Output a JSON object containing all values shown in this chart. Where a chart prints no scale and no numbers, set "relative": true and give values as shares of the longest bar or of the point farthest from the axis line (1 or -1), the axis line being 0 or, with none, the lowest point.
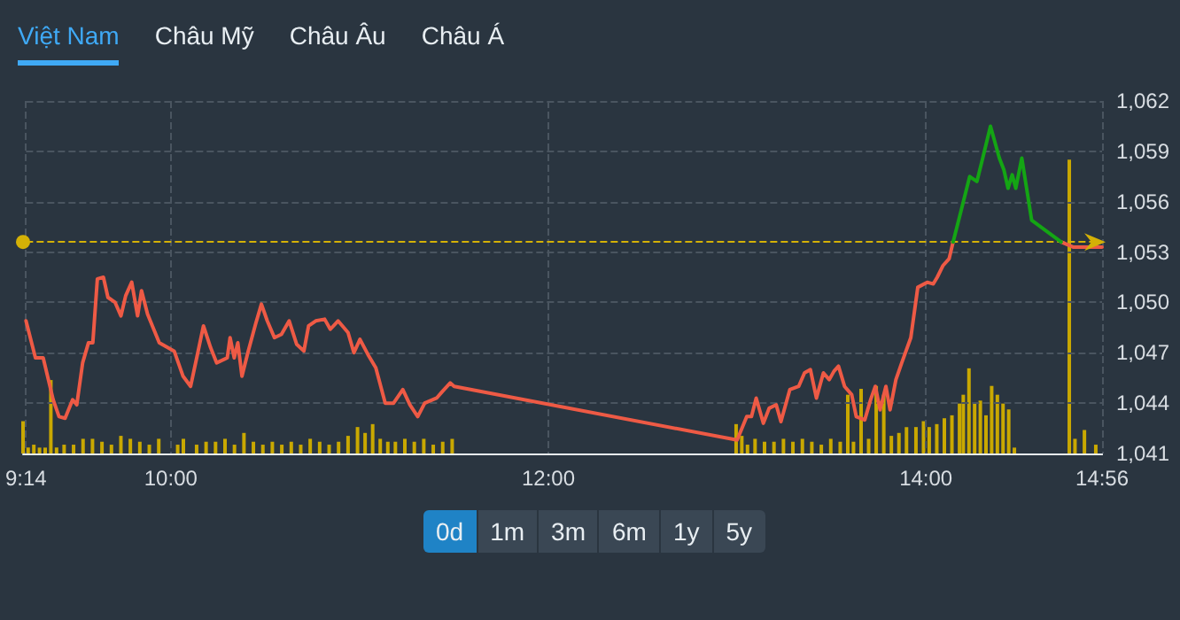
{
  "chart_data": [
    {
      "type": "line",
      "annotations": [
        "Việt Nam",
        "Châu Mỹ",
        "Châu Âu",
        "Châu Á",
        "0d",
        "1m",
        "3m",
        "6m",
        "1y",
        "5y"
      ],
      "xlim": [
        9.233,
        14.933
      ],
      "xticks": [
        {
          "value": 9.233,
          "label": "9:14"
        },
        {
          "value": 10,
          "label": "10:00"
        },
        {
          "value": 12,
          "label": "12:00"
        },
        {
          "value": 14,
          "label": "14:00"
        },
        {
          "value": 14.933,
          "label": "14:56"
        }
      ],
      "ylim": [
        1041,
        1062
      ],
      "yticks": [
        {
          "value": 1041,
          "label": "1,041"
        },
        {
          "value": 1044,
          "label": "1,044"
        },
        {
          "value": 1047,
          "label": "1,047"
        },
        {
          "value": 1050,
          "label": "1,050"
        },
        {
          "value": 1053,
          "label": "1,053"
        },
        {
          "value": 1056,
          "label": "1,056"
        },
        {
          "value": 1059,
          "label": "1,059"
        },
        {
          "value": 1062,
          "label": "1,062"
        }
      ],
      "grid": true,
      "marker": "none",
      "line_style": "solid",
      "ref_lines": [
        {
          "axis": "y",
          "value": 1053.6,
          "color": "#d4b106",
          "line_style": "dashed"
        }
      ],
      "series": [
        {
          "color": "#ee5a45",
          "x": [
            9.233,
            9.283,
            9.324,
            9.377,
            9.408,
            9.44,
            9.48,
            9.502,
            9.533,
            9.564,
            9.587,
            9.611,
            9.643,
            9.667,
            9.705,
            9.736,
            9.761,
            9.793,
            9.824,
            9.845,
            9.877,
            9.939,
            10.018,
            10.065,
            10.105,
            10.143,
            10.173,
            10.211,
            10.243,
            10.299,
            10.314,
            10.336,
            10.355,
            10.377,
            10.408,
            10.449,
            10.48,
            10.511,
            10.549,
            10.586,
            10.627,
            10.667,
            10.705,
            10.73,
            10.768,
            10.815,
            10.845,
            10.886,
            10.939,
            10.97,
            11.002,
            11.049,
            11.086,
            11.136,
            11.18,
            11.229,
            11.267,
            11.308,
            11.345,
            11.408,
            11.439,
            11.48,
            11.501,
            13.0,
            13.051,
            13.076,
            13.101,
            13.139,
            13.17,
            13.207,
            13.232,
            13.279,
            13.326,
            13.357,
            13.388,
            13.42,
            13.457,
            13.488,
            13.513,
            13.537,
            13.569,
            13.607,
            13.631,
            13.676,
            13.707,
            13.732,
            13.757,
            13.788,
            13.81,
            13.841,
            13.872,
            13.92,
            13.957,
            14.007,
            14.039,
            14.06,
            14.091,
            14.123,
            14.144,
            14.43,
            14.716,
            14.779,
            14.933
          ],
          "values": [
            1048.9,
            1046.7,
            1046.7,
            1044.2,
            1043.2,
            1043.1,
            1044.2,
            1043.9,
            1046.4,
            1047.6,
            1047.6,
            1051.4,
            1051.5,
            1050.3,
            1050.0,
            1049.2,
            1050.4,
            1051.2,
            1049.2,
            1050.7,
            1049.3,
            1047.6,
            1047.1,
            1045.6,
            1045.0,
            1047.0,
            1048.6,
            1047.3,
            1046.4,
            1046.7,
            1047.9,
            1046.7,
            1047.6,
            1045.6,
            1047.0,
            1048.7,
            1049.9,
            1048.9,
            1047.9,
            1048.1,
            1048.9,
            1047.5,
            1047.1,
            1048.6,
            1048.9,
            1049.0,
            1048.4,
            1048.9,
            1048.2,
            1047.0,
            1047.8,
            1046.8,
            1046.1,
            1044.0,
            1044.0,
            1044.8,
            1043.9,
            1043.2,
            1044.0,
            1044.3,
            1044.7,
            1045.2,
            1045.0,
            1041.8,
            1043.2,
            1043.2,
            1044.3,
            1042.8,
            1043.7,
            1043.9,
            1042.9,
            1044.8,
            1045.0,
            1045.8,
            1046.0,
            1044.3,
            1045.8,
            1045.4,
            1045.9,
            1046.2,
            1045.0,
            1044.5,
            1043.2,
            1043.0,
            1044.2,
            1045.0,
            1043.6,
            1045.0,
            1043.6,
            1045.4,
            1046.4,
            1047.9,
            1050.9,
            1051.2,
            1051.1,
            1051.5,
            1052.2,
            1052.6,
            1053.6,
            null,
            1053.6,
            1053.3,
            1053.3
          ]
        },
        {
          "color": "#14a514",
          "x": [
            14.144,
            14.185,
            14.232,
            14.27,
            14.301,
            14.342,
            14.389,
            14.413,
            14.435,
            14.457,
            14.476,
            14.508,
            14.56,
            14.716
          ],
          "values": [
            1053.6,
            1055.4,
            1057.5,
            1057.2,
            1058.6,
            1060.5,
            1058.6,
            1057.9,
            1056.8,
            1057.6,
            1056.8,
            1058.6,
            1054.9,
            1053.6
          ]
        }
      ]
    },
    {
      "type": "bar",
      "relative": true,
      "xlim": [
        9.233,
        14.933
      ],
      "color": "#c9a800",
      "x": [
        9.233,
        9.26,
        9.29,
        9.32,
        9.35,
        9.38,
        9.41,
        9.45,
        9.5,
        9.55,
        9.6,
        9.65,
        9.7,
        9.75,
        9.8,
        9.85,
        9.9,
        9.95,
        10.05,
        10.08,
        10.15,
        10.2,
        10.25,
        10.3,
        10.35,
        10.4,
        10.45,
        10.5,
        10.55,
        10.6,
        10.65,
        10.7,
        10.75,
        10.8,
        10.85,
        10.9,
        10.95,
        11.0,
        11.04,
        11.08,
        11.12,
        11.16,
        11.2,
        11.25,
        11.3,
        11.35,
        11.4,
        11.45,
        11.5,
        13.0,
        13.03,
        13.06,
        13.1,
        13.15,
        13.2,
        13.25,
        13.3,
        13.35,
        13.4,
        13.45,
        13.5,
        13.55,
        13.59,
        13.62,
        13.66,
        13.7,
        13.74,
        13.78,
        13.82,
        13.86,
        13.9,
        13.95,
        13.99,
        14.02,
        14.06,
        14.1,
        14.14,
        14.18,
        14.2,
        14.23,
        14.26,
        14.29,
        14.32,
        14.35,
        14.38,
        14.41,
        14.44,
        14.47,
        14.76,
        14.79,
        14.84,
        14.9
      ],
      "values": [
        0.11,
        0.02,
        0.03,
        0.02,
        0.02,
        0.25,
        0.02,
        0.03,
        0.03,
        0.05,
        0.05,
        0.04,
        0.03,
        0.06,
        0.05,
        0.04,
        0.03,
        0.05,
        0.03,
        0.05,
        0.03,
        0.04,
        0.04,
        0.05,
        0.03,
        0.07,
        0.04,
        0.03,
        0.04,
        0.03,
        0.04,
        0.03,
        0.05,
        0.04,
        0.03,
        0.04,
        0.06,
        0.09,
        0.07,
        0.1,
        0.05,
        0.04,
        0.04,
        0.05,
        0.04,
        0.05,
        0.03,
        0.04,
        0.05,
        0.1,
        0.06,
        0.03,
        0.05,
        0.04,
        0.04,
        0.05,
        0.04,
        0.05,
        0.04,
        0.03,
        0.05,
        0.04,
        0.2,
        0.04,
        0.22,
        0.05,
        0.23,
        0.2,
        0.06,
        0.07,
        0.09,
        0.09,
        0.11,
        0.09,
        0.1,
        0.12,
        0.13,
        0.17,
        0.2,
        0.29,
        0.17,
        0.18,
        0.13,
        0.23,
        0.2,
        0.17,
        0.15,
        0.02,
        1.0,
        0.05,
        0.08,
        0.03
      ]
    }
  ]
}
